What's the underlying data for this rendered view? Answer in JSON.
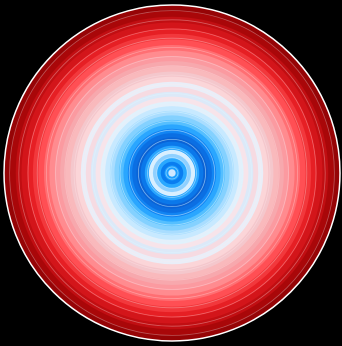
{
  "figure": {
    "type": "warming-stripes-spiral",
    "background_color": "#000000",
    "outline_color": "#ffffff",
    "ring_colors_center_to_edge": [
      "#cfe8ff",
      "#1ea0ff",
      "#0a7df0",
      "#2aa8ff",
      "#8fd0ff",
      "#d9efff",
      "#2aa6ff",
      "#0b78ea",
      "#0a63d6",
      "#0b6fe3",
      "#1285f3",
      "#2aa6ff",
      "#55bfff",
      "#84d1ff",
      "#a9ddff",
      "#c7e9ff",
      "#e3f0fb",
      "#f7e4ea",
      "#dce9f8",
      "#f6dbe2",
      "#e9eef8",
      "#fbd5d8",
      "#f4c7cc",
      "#f9b9bc",
      "#f7a8ad",
      "#fb9aa0",
      "#ff8b8f",
      "#ff6f73",
      "#ff4f54",
      "#f2383c",
      "#e61f24",
      "#d3151a",
      "#c10e12",
      "#a90709",
      "#960406"
    ]
  }
}
